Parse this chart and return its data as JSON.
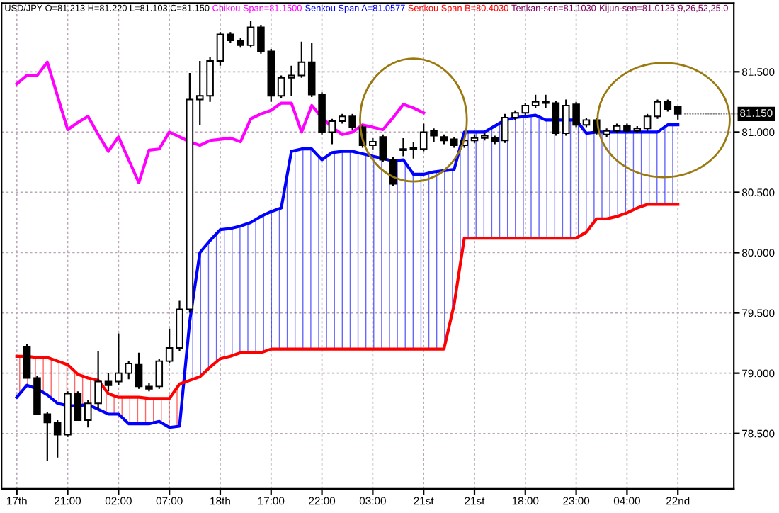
{
  "chart_data": {
    "type": "candlestick",
    "title": "USD/JPY O=81.213 H=81.220 L=81.103 C=81.150",
    "categories": [
      "17th",
      null,
      null,
      null,
      null,
      "21:00",
      null,
      null,
      null,
      null,
      "02:00",
      null,
      null,
      null,
      null,
      "07:00",
      null,
      null,
      null,
      null,
      "18th",
      null,
      null,
      null,
      null,
      "17:00",
      null,
      null,
      null,
      null,
      "22:00",
      null,
      null,
      null,
      null,
      "03:00",
      null,
      null,
      null,
      null,
      "21st",
      null,
      null,
      null,
      null,
      "21st",
      null,
      null,
      null,
      null,
      "18:00",
      null,
      null,
      null,
      null,
      "23:00",
      null,
      null,
      null,
      null,
      "04:00",
      null,
      null,
      null,
      null,
      "22nd",
      null,
      null,
      null,
      null,
      null
    ],
    "ohlc": [
      null,
      [
        79.22,
        79.24,
        78.96,
        78.96
      ],
      [
        78.96,
        78.98,
        78.66,
        78.66
      ],
      [
        78.66,
        78.68,
        78.27,
        78.59
      ],
      [
        78.59,
        78.61,
        78.3,
        78.49
      ],
      [
        78.49,
        78.85,
        78.47,
        78.83
      ],
      [
        78.83,
        78.85,
        78.61,
        78.61
      ],
      [
        78.61,
        78.78,
        78.55,
        78.75
      ],
      [
        78.75,
        79.18,
        78.7,
        78.93
      ],
      [
        78.93,
        79.0,
        78.85,
        78.9
      ],
      [
        78.93,
        79.33,
        78.9,
        79.0
      ],
      [
        79.0,
        79.1,
        78.95,
        79.08
      ],
      [
        79.07,
        79.17,
        78.87,
        78.89
      ],
      [
        78.89,
        78.92,
        78.85,
        78.87
      ],
      [
        78.89,
        79.12,
        78.87,
        79.1
      ],
      [
        79.1,
        79.37,
        79.08,
        79.21
      ],
      [
        79.21,
        79.6,
        79.18,
        79.53
      ],
      [
        79.53,
        81.49,
        79.5,
        81.27
      ],
      [
        81.27,
        81.59,
        81.06,
        81.3
      ],
      [
        81.3,
        81.62,
        81.25,
        81.59
      ],
      [
        81.59,
        81.83,
        81.55,
        81.81
      ],
      [
        81.81,
        81.83,
        81.74,
        81.76
      ],
      [
        81.76,
        81.78,
        81.7,
        81.72
      ],
      [
        81.72,
        81.92,
        81.7,
        81.87
      ],
      [
        81.87,
        81.89,
        81.65,
        81.67
      ],
      [
        81.67,
        81.69,
        81.25,
        81.3
      ],
      [
        81.3,
        81.47,
        81.28,
        81.45
      ],
      [
        81.45,
        81.55,
        81.3,
        81.47
      ],
      [
        81.47,
        81.75,
        81.45,
        81.58
      ],
      [
        81.58,
        81.74,
        81.29,
        81.31
      ],
      [
        81.31,
        81.33,
        80.98,
        81.0
      ],
      [
        81.0,
        81.11,
        80.9,
        81.09
      ],
      [
        81.09,
        81.15,
        81.07,
        81.13
      ],
      [
        81.13,
        81.15,
        81.02,
        81.04
      ],
      [
        81.04,
        81.06,
        80.87,
        80.89
      ],
      [
        80.89,
        80.95,
        80.85,
        80.92
      ],
      [
        80.96,
        80.98,
        80.75,
        80.77
      ],
      [
        80.77,
        80.79,
        80.55,
        80.57
      ],
      [
        80.85,
        80.95,
        80.8,
        80.86
      ],
      [
        80.86,
        80.92,
        80.78,
        80.87
      ],
      [
        80.86,
        81.07,
        80.84,
        81.0
      ],
      [
        81.01,
        81.03,
        80.92,
        80.97
      ],
      [
        80.96,
        80.98,
        80.9,
        80.93
      ],
      [
        80.94,
        80.96,
        80.87,
        80.89
      ],
      [
        80.89,
        80.95,
        80.87,
        80.93
      ],
      [
        80.93,
        80.98,
        80.91,
        80.95
      ],
      [
        80.95,
        80.99,
        80.93,
        80.97
      ],
      [
        80.95,
        80.97,
        80.9,
        80.92
      ],
      [
        80.93,
        81.15,
        80.91,
        81.12
      ],
      [
        81.12,
        81.18,
        81.1,
        81.16
      ],
      [
        81.16,
        81.24,
        81.14,
        81.22
      ],
      [
        81.22,
        81.31,
        81.2,
        81.25
      ],
      [
        81.24,
        81.31,
        81.2,
        81.25
      ],
      [
        81.24,
        81.26,
        80.97,
        80.99
      ],
      [
        80.99,
        81.27,
        80.97,
        81.22
      ],
      [
        81.23,
        81.25,
        81.04,
        81.06
      ],
      [
        81.06,
        81.12,
        81.04,
        81.1
      ],
      [
        81.1,
        81.12,
        80.98,
        81.0
      ],
      [
        80.98,
        81.03,
        80.96,
        81.01
      ],
      [
        81.01,
        81.07,
        80.99,
        81.05
      ],
      [
        81.05,
        81.07,
        81.0,
        81.01
      ],
      [
        81.01,
        81.05,
        80.99,
        81.03
      ],
      [
        81.03,
        81.15,
        81.01,
        81.13
      ],
      [
        81.13,
        81.27,
        81.11,
        81.25
      ],
      [
        81.25,
        81.27,
        81.17,
        81.19
      ],
      [
        81.213,
        81.22,
        81.103,
        81.15
      ],
      null,
      null,
      null,
      null,
      null
    ],
    "series": [
      {
        "name": "Chikou Span=81.1500",
        "type": "line",
        "color": "#ff00ff",
        "values": [
          81.4,
          81.47,
          81.47,
          81.58,
          81.3,
          81.02,
          81.08,
          81.13,
          80.98,
          80.84,
          80.96,
          80.77,
          80.58,
          80.85,
          80.86,
          81.0,
          80.96,
          80.92,
          80.89,
          80.93,
          80.94,
          80.95,
          80.92,
          81.11,
          81.15,
          81.18,
          81.24,
          81.24,
          81.0,
          81.22,
          81.12,
          81.04,
          80.98,
          81.0,
          81.06,
          81.04,
          81.02,
          81.12,
          81.23,
          81.2,
          81.16,
          null,
          null,
          null,
          null,
          null,
          null,
          null,
          null,
          null,
          null,
          null,
          null,
          null,
          null,
          null,
          null,
          null,
          null,
          null,
          null,
          null,
          null,
          null,
          null,
          null,
          null,
          null,
          null,
          null,
          null
        ]
      },
      {
        "name": "Senkou Span A=81.0577",
        "type": "line",
        "color": "#0000ff",
        "values": [
          78.8,
          78.9,
          78.87,
          78.82,
          78.75,
          78.73,
          78.73,
          78.74,
          78.7,
          78.66,
          78.66,
          78.58,
          78.58,
          78.58,
          78.6,
          78.55,
          78.56,
          79.43,
          80.0,
          80.1,
          80.19,
          80.2,
          80.22,
          80.25,
          80.3,
          80.34,
          80.37,
          80.84,
          80.86,
          80.86,
          80.77,
          80.83,
          80.84,
          80.84,
          80.82,
          80.8,
          80.78,
          80.76,
          80.77,
          80.65,
          80.65,
          80.67,
          80.68,
          80.69,
          81.0,
          81.0,
          81.0,
          81.05,
          81.1,
          81.12,
          81.13,
          81.14,
          81.1,
          81.1,
          81.1,
          81.1,
          80.99,
          81.0,
          81.0,
          81.0,
          81.0,
          81.0,
          81.0,
          81.0,
          81.06,
          81.06,
          null,
          null,
          null,
          null,
          null
        ]
      },
      {
        "name": "Senkou Span B=80.4030",
        "type": "line",
        "color": "#ff0000",
        "values": [
          79.14,
          79.14,
          79.13,
          79.13,
          79.1,
          79.07,
          78.99,
          78.96,
          78.94,
          78.83,
          78.8,
          78.8,
          78.8,
          78.79,
          78.79,
          78.79,
          78.91,
          78.94,
          78.97,
          79.05,
          79.12,
          79.14,
          79.17,
          79.17,
          79.17,
          79.2,
          79.2,
          79.2,
          79.2,
          79.2,
          79.2,
          79.2,
          79.2,
          79.2,
          79.2,
          79.2,
          79.2,
          79.2,
          79.2,
          79.2,
          79.2,
          79.2,
          79.2,
          79.57,
          80.12,
          80.12,
          80.12,
          80.12,
          80.12,
          80.12,
          80.12,
          80.12,
          80.12,
          80.12,
          80.12,
          80.12,
          80.17,
          80.28,
          80.28,
          80.3,
          80.33,
          80.37,
          80.4,
          80.4,
          80.4,
          80.4,
          null,
          null,
          null,
          null,
          null
        ]
      }
    ],
    "annotations": [
      "Tenkan-sen=81.1030",
      "Kijun-sen=81.0125",
      "9,26,52,25,0",
      {
        "text": "81.150",
        "x": "22nd",
        "y": 81.15
      }
    ],
    "ylim": [
      78.04,
      82.07
    ],
    "yticks": [
      {
        "value": 78.5,
        "label": "78.500"
      },
      {
        "value": 79.0,
        "label": "79.000"
      },
      {
        "value": 79.5,
        "label": "79.500"
      },
      {
        "value": 80.0,
        "label": "80.000"
      },
      {
        "value": 80.5,
        "label": "80.500"
      },
      {
        "value": 81.0,
        "label": "81.000"
      },
      {
        "value": 81.5,
        "label": "81.500"
      }
    ],
    "grid": true,
    "legend": "top"
  }
}
